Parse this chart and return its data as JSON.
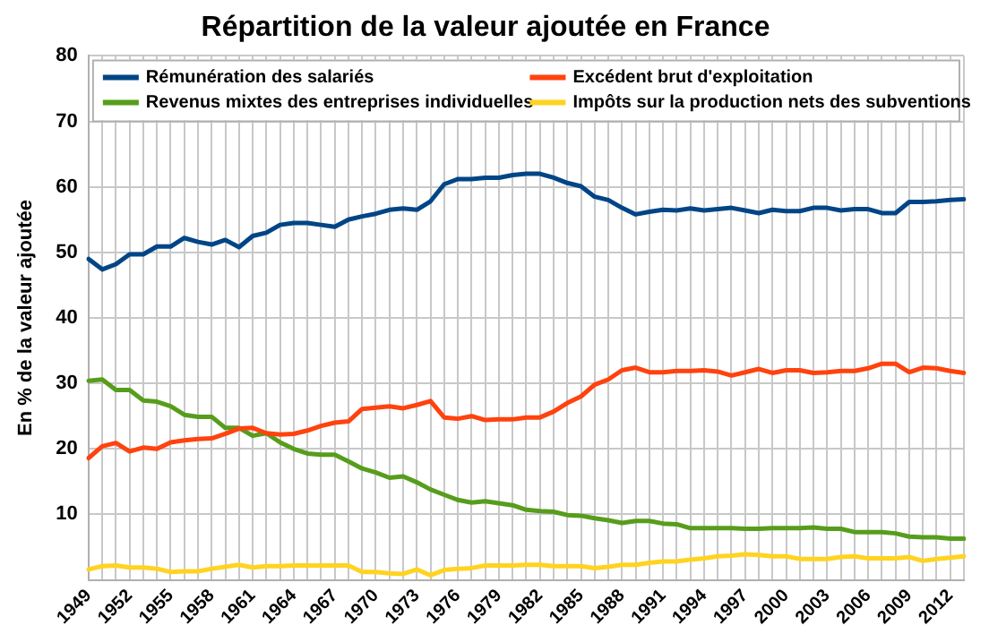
{
  "chart_data": {
    "type": "line",
    "title": "Répartition de la valeur ajoutée en France",
    "ylabel": "En % de la valeur ajoutée",
    "categories": [
      "1949",
      null,
      null,
      "1952",
      null,
      null,
      "1955",
      null,
      null,
      "1958",
      null,
      null,
      "1961",
      null,
      null,
      "1964",
      null,
      null,
      "1967",
      null,
      null,
      "1970",
      null,
      null,
      "1973",
      null,
      null,
      "1976",
      null,
      null,
      "1979",
      null,
      null,
      "1982",
      null,
      null,
      "1985",
      null,
      null,
      "1988",
      null,
      null,
      "1991",
      null,
      null,
      "1994",
      null,
      null,
      "1997",
      null,
      null,
      "2000",
      null,
      null,
      "2003",
      null,
      null,
      "2006",
      null,
      null,
      "2009",
      null,
      null,
      "2012",
      null
    ],
    "series": [
      {
        "name": "Rémunération des salariés",
        "color": "#004586",
        "values": [
          49.0,
          47.4,
          48.2,
          49.7,
          49.7,
          50.9,
          50.9,
          52.2,
          51.6,
          51.2,
          51.9,
          50.8,
          52.5,
          53.0,
          54.2,
          54.5,
          54.5,
          54.2,
          53.9,
          55.0,
          55.5,
          55.9,
          56.5,
          56.7,
          56.5,
          57.8,
          60.4,
          61.2,
          61.2,
          61.4,
          61.4,
          61.8,
          62.0,
          62.0,
          61.4,
          60.6,
          60.1,
          58.5,
          58.0,
          56.8,
          55.8,
          56.2,
          56.5,
          56.4,
          56.7,
          56.4,
          56.6,
          56.8,
          56.4,
          56.0,
          56.5,
          56.3,
          56.3,
          56.8,
          56.8,
          56.4,
          56.6,
          56.6,
          56.0,
          56.0,
          57.7,
          57.7,
          57.8,
          58.0,
          58.1
        ]
      },
      {
        "name": "Excédent brut d'exploitation",
        "color": "#ff420e",
        "values": [
          18.6,
          20.4,
          20.9,
          19.6,
          20.2,
          20.0,
          21.0,
          21.3,
          21.5,
          21.6,
          22.3,
          23.1,
          23.2,
          22.4,
          22.2,
          22.3,
          22.8,
          23.5,
          24.0,
          24.2,
          26.1,
          26.3,
          26.5,
          26.2,
          26.7,
          27.3,
          24.8,
          24.6,
          25.0,
          24.4,
          24.5,
          24.5,
          24.8,
          24.8,
          25.7,
          27.0,
          28.0,
          29.8,
          30.6,
          32.0,
          32.4,
          31.7,
          31.7,
          31.9,
          31.9,
          32.0,
          31.8,
          31.2,
          31.7,
          32.2,
          31.6,
          32.0,
          32.0,
          31.6,
          31.7,
          31.9,
          31.9,
          32.3,
          33.0,
          33.0,
          31.7,
          32.4,
          32.3,
          31.9,
          31.6
        ]
      },
      {
        "name": "Revenus mixtes des entreprises individuelles",
        "color": "#579d1c",
        "values": [
          30.4,
          30.6,
          29.0,
          29.0,
          27.4,
          27.2,
          26.5,
          25.2,
          24.9,
          24.9,
          23.2,
          23.2,
          22.0,
          22.4,
          21.0,
          20.0,
          19.3,
          19.1,
          19.1,
          18.1,
          17.0,
          16.4,
          15.6,
          15.8,
          14.9,
          13.8,
          13.0,
          12.2,
          11.8,
          12.0,
          11.7,
          11.4,
          10.7,
          10.5,
          10.4,
          9.9,
          9.8,
          9.4,
          9.1,
          8.7,
          9.0,
          9.0,
          8.6,
          8.5,
          7.9,
          7.9,
          7.9,
          7.9,
          7.8,
          7.8,
          7.9,
          7.9,
          7.9,
          8.0,
          7.8,
          7.8,
          7.3,
          7.3,
          7.3,
          7.1,
          6.6,
          6.5,
          6.5,
          6.3,
          6.3
        ]
      },
      {
        "name": "Impôts sur la production nets des subventions",
        "color": "#ffd320",
        "values": [
          1.6,
          2.1,
          2.2,
          1.9,
          1.9,
          1.7,
          1.2,
          1.3,
          1.3,
          1.7,
          2.0,
          2.3,
          1.9,
          2.1,
          2.1,
          2.2,
          2.2,
          2.2,
          2.2,
          2.2,
          1.2,
          1.2,
          1.0,
          0.9,
          1.6,
          0.7,
          1.5,
          1.7,
          1.8,
          2.2,
          2.2,
          2.2,
          2.3,
          2.3,
          2.1,
          2.1,
          2.1,
          1.8,
          2.0,
          2.3,
          2.3,
          2.6,
          2.8,
          2.8,
          3.1,
          3.3,
          3.6,
          3.7,
          3.9,
          3.8,
          3.6,
          3.6,
          3.2,
          3.2,
          3.2,
          3.5,
          3.6,
          3.3,
          3.3,
          3.3,
          3.5,
          2.9,
          3.2,
          3.4,
          3.6
        ]
      }
    ],
    "ylim": [
      0,
      80
    ],
    "yticks": [
      {
        "value": 0,
        "label": null
      },
      10,
      20,
      30,
      40,
      50,
      60,
      70,
      80
    ],
    "grid": true,
    "legend": "top",
    "marker": "none",
    "line_style": "solid"
  }
}
